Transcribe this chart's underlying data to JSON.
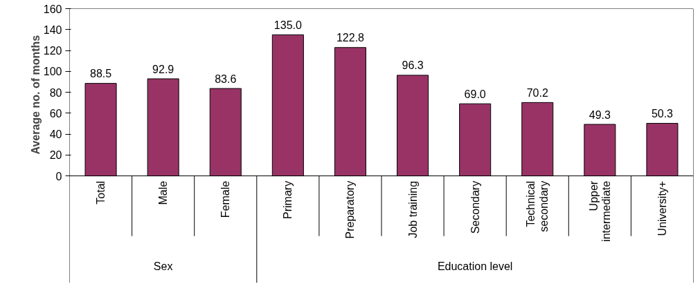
{
  "chart_data": {
    "type": "bar",
    "ylabel": "Average no. of months",
    "categories": [
      "Total",
      "Male",
      "Female",
      "Primary",
      "Preparatory",
      "Job training",
      "Secondary",
      "Technical secondary",
      "Upper intermediate",
      "University+"
    ],
    "values": [
      88.5,
      92.9,
      83.6,
      135.0,
      122.8,
      96.3,
      69.0,
      70.2,
      49.3,
      50.3
    ],
    "value_labels": [
      "88.5",
      "92.9",
      "83.6",
      "135.0",
      "122.8",
      "96.3",
      "69.0",
      "70.2",
      "49.3",
      "50.3"
    ],
    "color": "#993366",
    "ylim": [
      0,
      160
    ],
    "yticks": [
      0,
      20,
      40,
      60,
      80,
      100,
      120,
      140,
      160
    ],
    "grid": false,
    "annotations": [
      "Sex",
      "Education level"
    ]
  }
}
